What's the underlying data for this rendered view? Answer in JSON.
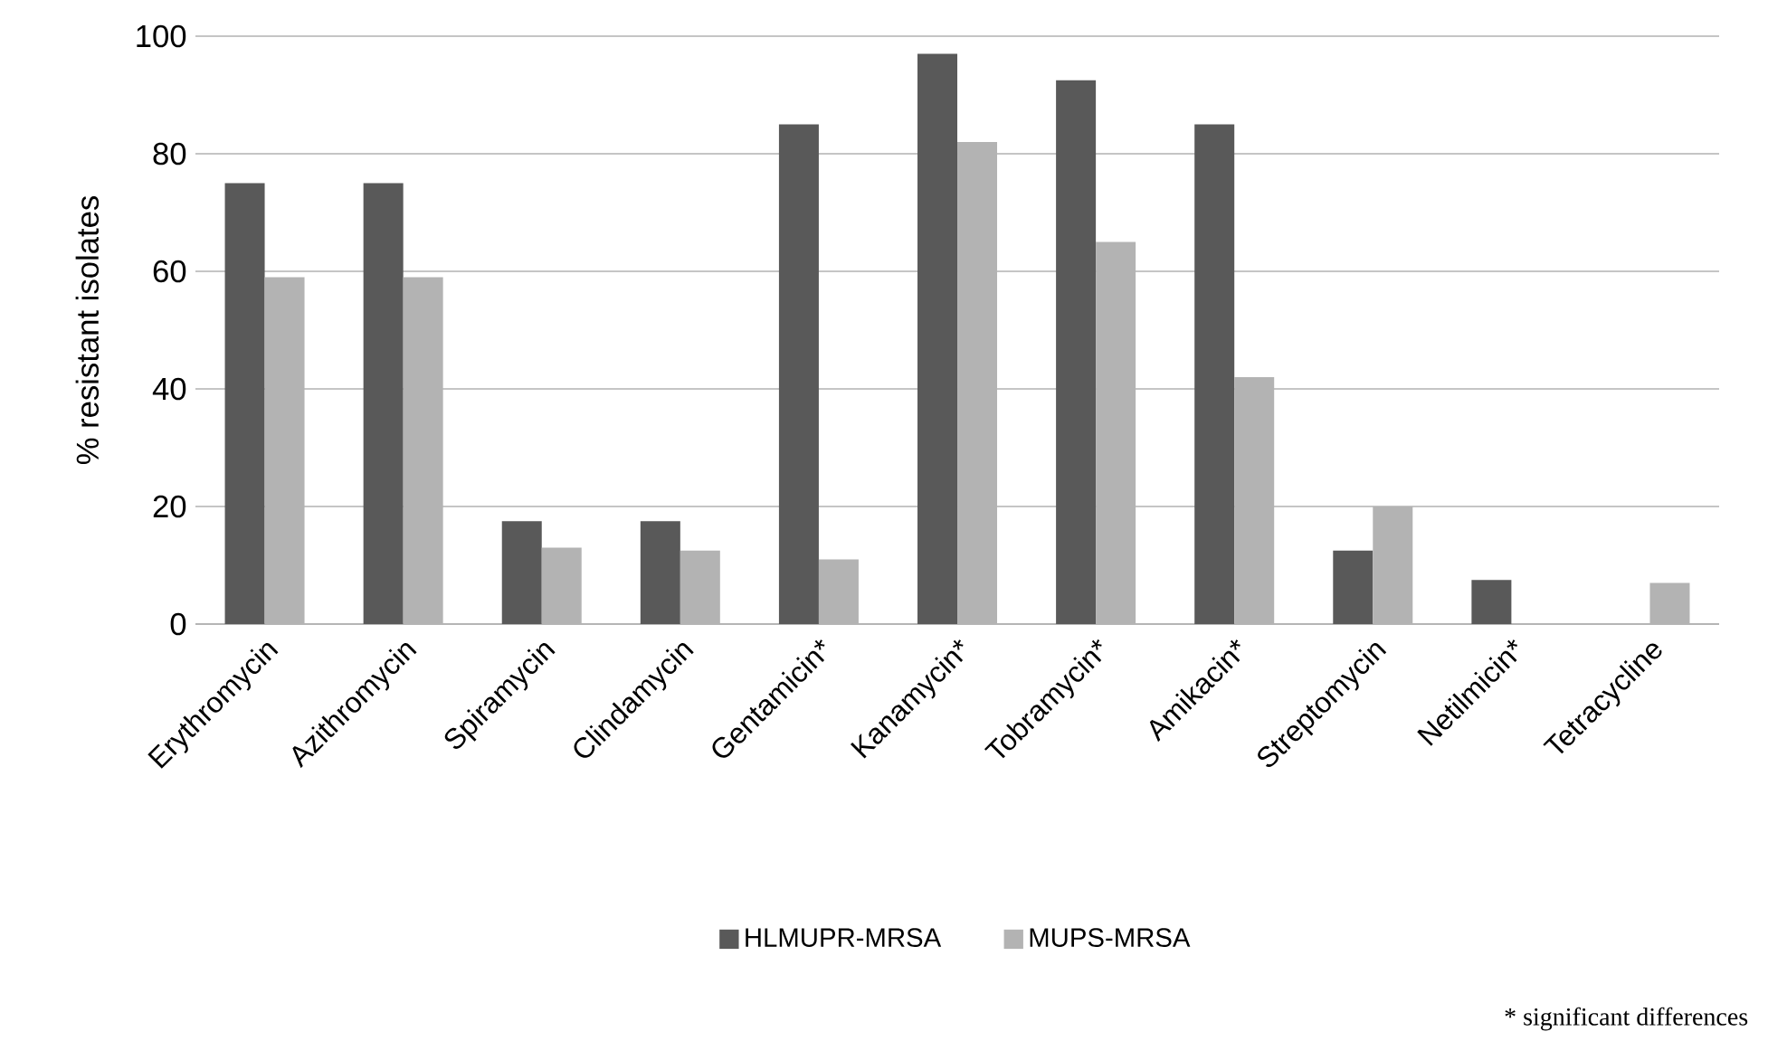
{
  "chart_data": {
    "type": "bar",
    "ylabel": "%  resistant isolates",
    "categories": [
      "Erythromycin",
      "Azithromycin",
      "Spiramycin",
      "Clindamycin",
      "Gentamicin*",
      "Kanamycin*",
      "Tobramycin*",
      "Amikacin*",
      "Streptomycin",
      "Netilmicin*",
      "Tetracycline"
    ],
    "series": [
      {
        "name": "HLMUPR-MRSA",
        "color": "#595959",
        "values": [
          75,
          75,
          17.5,
          17.5,
          85,
          97,
          92.5,
          85,
          12.5,
          7.5,
          0
        ]
      },
      {
        "name": "MUPS-MRSA",
        "color": "#b3b3b3",
        "values": [
          59,
          59,
          13,
          12.5,
          11,
          82,
          65,
          42,
          20,
          0,
          7
        ]
      }
    ],
    "ylim": [
      0,
      100
    ],
    "yticks": [
      0,
      20,
      40,
      60,
      80,
      100
    ],
    "grid": "y",
    "legend": "bottom",
    "annotations": [
      "*  significant differences"
    ]
  }
}
